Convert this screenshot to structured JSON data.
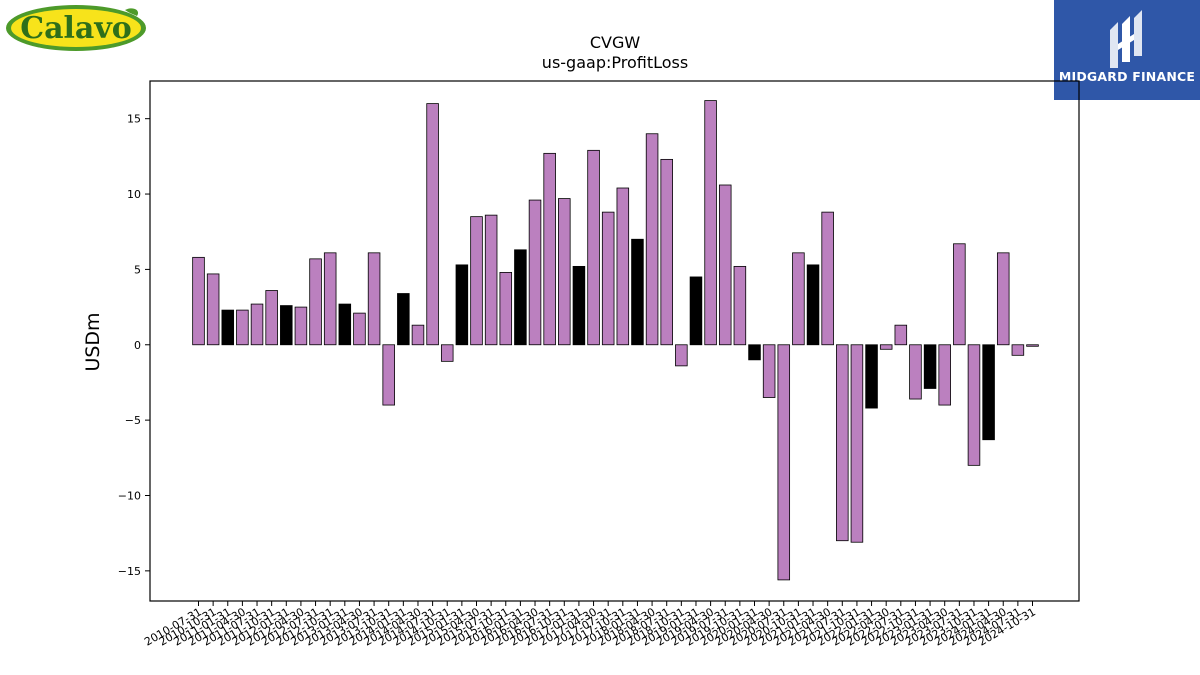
{
  "logos": {
    "left_brand": "Calavo",
    "right_brand": "MIDGARD FINANCE"
  },
  "colors": {
    "bar_purple": "#bb80bf",
    "bar_black": "#000000",
    "calavo_green": "#4d9a2a",
    "calavo_yellow": "#f7e31b",
    "midgard_blue": "#2f57a8"
  },
  "chart_data": {
    "type": "bar",
    "title": "CVGW",
    "subtitle": "us-gaap:ProfitLoss",
    "xlabel": "",
    "ylabel": "USDm",
    "ylim": [
      -17,
      17.5
    ],
    "yticks": [
      -15,
      -10,
      -5,
      0,
      5,
      10,
      15
    ],
    "grid": false,
    "legend": "none",
    "categories": [
      "2010-07-31",
      "2010-10-31",
      "2011-01-31",
      "2011-04-30",
      "2011-07-31",
      "2011-10-31",
      "2012-01-31",
      "2012-04-30",
      "2012-07-31",
      "2012-10-31",
      "2013-01-31",
      "2013-04-30",
      "2013-07-31",
      "2013-10-31",
      "2014-01-31",
      "2014-04-30",
      "2014-07-31",
      "2014-10-31",
      "2015-01-31",
      "2015-04-30",
      "2015-07-31",
      "2015-10-31",
      "2016-01-31",
      "2016-04-30",
      "2016-07-31",
      "2016-10-31",
      "2017-01-31",
      "2017-04-30",
      "2017-07-31",
      "2017-10-31",
      "2018-01-31",
      "2018-04-30",
      "2018-07-31",
      "2018-10-31",
      "2019-01-31",
      "2019-04-30",
      "2019-07-31",
      "2019-10-31",
      "2020-01-31",
      "2020-04-30",
      "2020-07-31",
      "2020-10-31",
      "2021-01-31",
      "2021-04-30",
      "2021-07-31",
      "2021-10-31",
      "2022-01-31",
      "2022-04-30",
      "2022-07-31",
      "2022-10-31",
      "2023-01-31",
      "2023-04-30",
      "2023-07-31",
      "2023-10-31",
      "2024-01-31",
      "2024-04-30",
      "2024-07-31",
      "2024-10-31"
    ],
    "values": [
      5.8,
      4.7,
      2.3,
      2.3,
      2.7,
      3.6,
      2.6,
      2.5,
      5.7,
      6.1,
      2.7,
      2.1,
      6.1,
      -4.0,
      3.4,
      1.3,
      16.0,
      -1.1,
      5.3,
      8.5,
      8.6,
      4.8,
      6.3,
      9.6,
      12.7,
      9.7,
      5.2,
      12.9,
      8.8,
      10.4,
      7.0,
      14.0,
      12.3,
      -1.4,
      4.5,
      16.2,
      10.6,
      5.2,
      -1.0,
      -3.5,
      -15.6,
      6.1,
      5.3,
      8.8,
      -13.0,
      -13.1,
      -4.2,
      -0.3,
      1.3,
      -3.6,
      -2.9,
      -4.0,
      6.7,
      -8.0,
      -6.3,
      6.1,
      -0.7,
      -0.1
    ],
    "bar_colors": [
      "purple",
      "purple",
      "black",
      "purple",
      "purple",
      "purple",
      "black",
      "purple",
      "purple",
      "purple",
      "black",
      "purple",
      "purple",
      "purple",
      "black",
      "purple",
      "purple",
      "purple",
      "black",
      "purple",
      "purple",
      "purple",
      "black",
      "purple",
      "purple",
      "purple",
      "black",
      "purple",
      "purple",
      "purple",
      "black",
      "purple",
      "purple",
      "purple",
      "black",
      "purple",
      "purple",
      "purple",
      "black",
      "purple",
      "purple",
      "purple",
      "black",
      "purple",
      "purple",
      "purple",
      "black",
      "purple",
      "purple",
      "purple",
      "black",
      "purple",
      "purple",
      "purple",
      "black",
      "purple",
      "purple",
      "purple"
    ]
  }
}
